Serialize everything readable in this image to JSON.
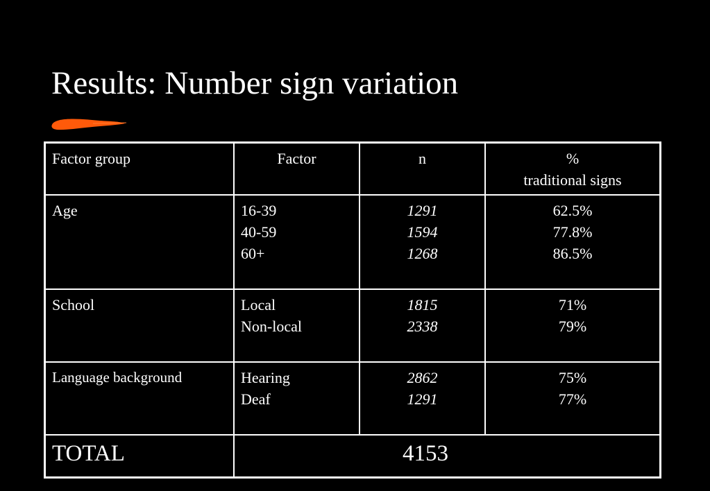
{
  "title": "Results: Number sign variation",
  "table": {
    "header": [
      "Factor group",
      "Factor",
      "n",
      "%",
      "traditional signs"
    ],
    "rows": [
      {
        "group": "Age",
        "factors": [
          "16-39",
          "40-59",
          "60+"
        ],
        "n": [
          1291,
          1594,
          1268
        ],
        "percent": [
          "62.5%",
          "77.8%",
          "86.5%"
        ]
      },
      {
        "group": "School",
        "factors": [
          "Local",
          "Non-local"
        ],
        "n": [
          1815,
          2338
        ],
        "percent": [
          "71%",
          "79%"
        ]
      },
      {
        "group": "Language background",
        "factors": [
          "Hearing",
          "Deaf"
        ],
        "n": [
          2862,
          1291
        ],
        "percent": [
          "75%",
          "77%"
        ]
      }
    ],
    "total": {
      "label": "TOTAL",
      "value": 4153
    }
  }
}
